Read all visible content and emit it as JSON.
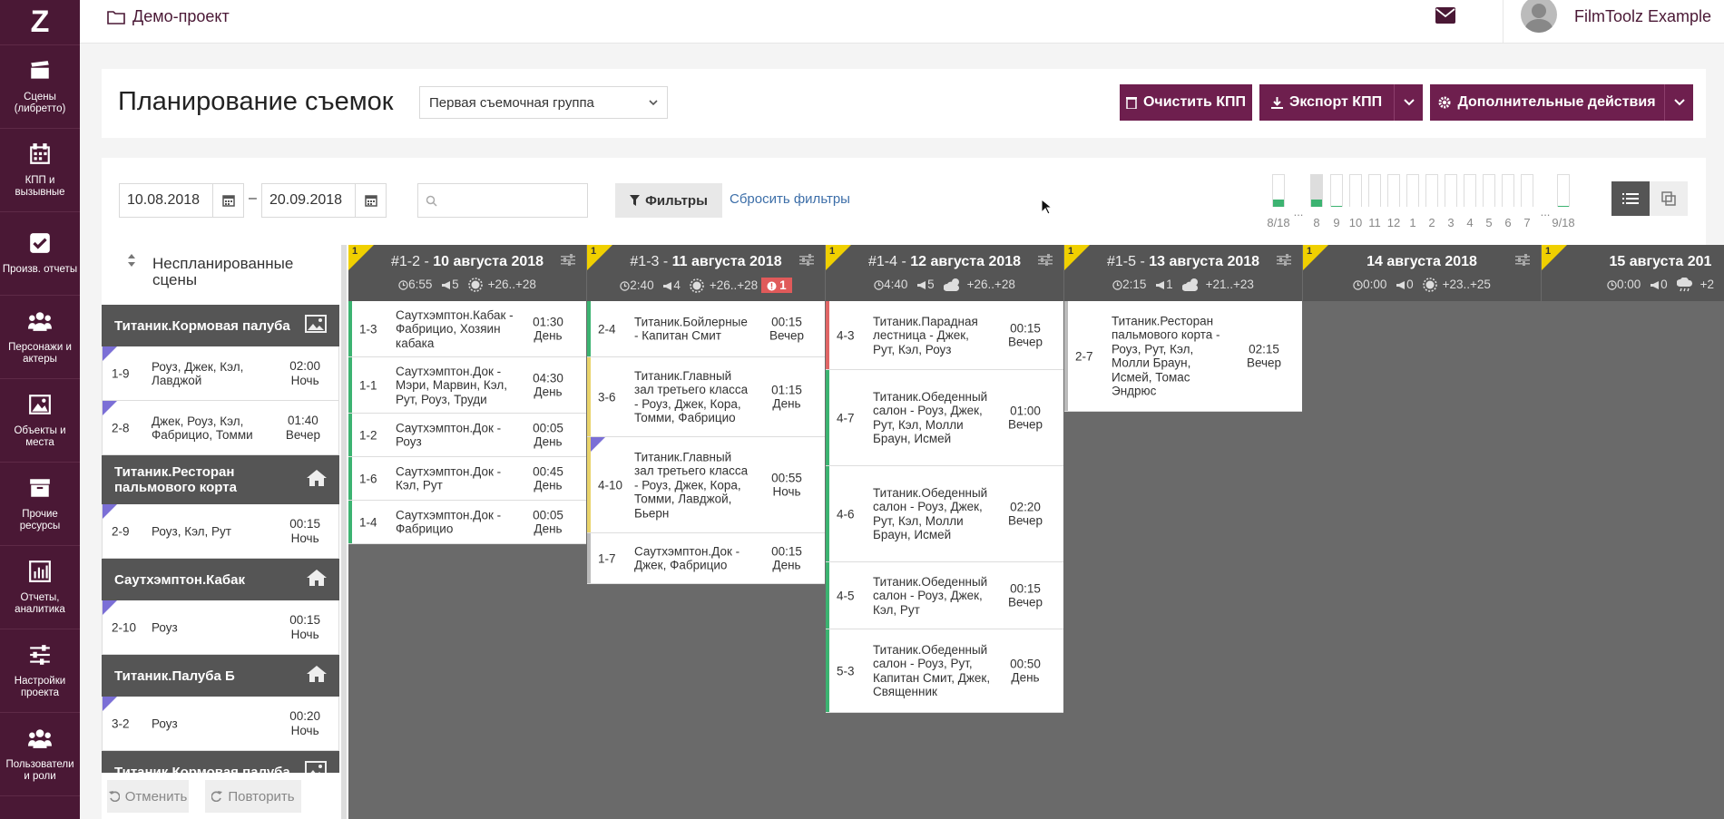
{
  "sidebar": {
    "logo": "Z",
    "items": [
      {
        "label": "Сцены (либретто)"
      },
      {
        "label": "КПП и вызывные"
      },
      {
        "label": "Произв. отчеты"
      },
      {
        "label": "Персонажи и актеры"
      },
      {
        "label": "Объекты и места"
      },
      {
        "label": "Прочие ресурсы"
      },
      {
        "label": "Отчеты, аналитика"
      },
      {
        "label": "Настройки проекта"
      },
      {
        "label": "Пользователи и роли"
      }
    ]
  },
  "topbar": {
    "project": "Демо-проект",
    "username": "FilmToolz Example"
  },
  "header": {
    "title": "Планирование съемок",
    "group": "Первая съемочная группа",
    "clear_btn": "Очистить КПП",
    "export_btn": "Экспорт КПП",
    "more_btn": "Дополнительные действия"
  },
  "toolbar": {
    "date_from": "10.08.2018",
    "date_sep": "–",
    "date_to": "20.09.2018",
    "search_placeholder": "",
    "filters_btn": "Фильтры",
    "reset_link": "Сбросить фильтры",
    "mini_labels": [
      "8/18",
      "...",
      "8",
      "9",
      "10",
      "11",
      "12",
      "1",
      "2",
      "3",
      "4",
      "5",
      "6",
      "7",
      "...",
      "9/18"
    ]
  },
  "unplanned": {
    "title": "Неспланированные сцены",
    "undo": "Отменить",
    "redo": "Повторить",
    "groups": [
      {
        "location": "Титаник.Кормовая палуба",
        "icon": "image-icon",
        "scenes": [
          {
            "num": "1-9",
            "desc": "Роуз, Джек, Кэл, Лавджой",
            "time": "02:00",
            "part": "Ночь"
          },
          {
            "num": "2-8",
            "desc": "Джек, Роуз, Кэл, Фабрицио, Томми",
            "time": "01:40",
            "part": "Вечер"
          }
        ]
      },
      {
        "location": "Титаник.Ресторан пальмового корта",
        "icon": "home-icon",
        "scenes": [
          {
            "num": "2-9",
            "desc": "Роуз, Кэл, Рут",
            "time": "00:15",
            "part": "Ночь"
          }
        ]
      },
      {
        "location": "Саутхэмптон.Кабак",
        "icon": "home-icon",
        "scenes": [
          {
            "num": "2-10",
            "desc": "Роуз",
            "time": "00:15",
            "part": "Ночь"
          }
        ]
      },
      {
        "location": "Титаник.Палуба Б",
        "icon": "home-icon",
        "scenes": [
          {
            "num": "3-2",
            "desc": "Роуз",
            "time": "00:20",
            "part": "Ночь"
          }
        ]
      },
      {
        "location": "Титаник.Кормовая палуба",
        "icon": "image-icon",
        "scenes": []
      }
    ]
  },
  "days": [
    {
      "flag": "1",
      "code": "#1-2 -",
      "date": "10 августа 2018",
      "dur": "6:55",
      "count": "5",
      "weather": "sun-icon",
      "temp": "+26..+28",
      "warn": "",
      "scenes": [
        {
          "num": "1-3",
          "desc": "Саутхэмптон.Кабак - Фабрицио, Хозяин кабака",
          "time": "01:30",
          "part": "День",
          "bar": "",
          "tri": false,
          "h": 62
        },
        {
          "num": "1-1",
          "desc": "Саутхэмптон.Док - Мэри, Марвин, Кэл, Рут, Роуз, Труди",
          "time": "04:30",
          "part": "День",
          "bar": "",
          "tri": false,
          "h": 62
        },
        {
          "num": "1-2",
          "desc": "Саутхэмптон.Док - Роуз",
          "time": "00:05",
          "part": "День",
          "bar": "",
          "tri": false,
          "h": 48
        },
        {
          "num": "1-6",
          "desc": "Саутхэмптон.Док - Кэл, Рут",
          "time": "00:45",
          "part": "День",
          "bar": "",
          "tri": false,
          "h": 48
        },
        {
          "num": "1-4",
          "desc": "Саутхэмптон.Док - Фабрицио",
          "time": "00:05",
          "part": "День",
          "bar": "",
          "tri": false,
          "h": 48
        }
      ]
    },
    {
      "flag": "1",
      "code": "#1-3 -",
      "date": "11 августа 2018",
      "dur": "2:40",
      "count": "4",
      "weather": "sun-icon",
      "temp": "+26..+28",
      "warn": "1",
      "scenes": [
        {
          "num": "2-4",
          "desc": "Титаник.Бойлерные - Капитан Смит",
          "time": "00:15",
          "part": "Вечер",
          "bar": "",
          "tri": false,
          "h": 62
        },
        {
          "num": "3-6",
          "desc": "Титаник.Главный зал третьего класса - Роуз, Джек, Кора, Томми, Фабрицио",
          "time": "01:15",
          "part": "День",
          "bar": "y",
          "tri": false,
          "h": 88
        },
        {
          "num": "4-10",
          "desc": "Титаник.Главный зал третьего класса - Роуз, Джек, Кора, Томми, Лавджой, Бьерн",
          "time": "00:55",
          "part": "Ночь",
          "bar": "y",
          "tri": true,
          "h": 106
        },
        {
          "num": "1-7",
          "desc": "Саутхэмптон.Док - Джек, Фабрицио",
          "time": "00:15",
          "part": "День",
          "bar": "g",
          "tri": false,
          "h": 56
        }
      ]
    },
    {
      "flag": "1",
      "code": "#1-4 -",
      "date": "12 августа 2018",
      "dur": "4:40",
      "count": "5",
      "weather": "cloud-icon",
      "temp": "+26..+28",
      "warn": "",
      "scenes": [
        {
          "num": "4-3",
          "desc": "Титаник.Парадная лестница - Джек, Рут, Кэл, Роуз",
          "time": "00:15",
          "part": "Вечер",
          "bar": "r",
          "tri": false,
          "h": 76
        },
        {
          "num": "4-7",
          "desc": "Титаник.Обеденный салон - Роуз, Джек, Рут, Кэл, Молли Браун, Исмей",
          "time": "01:00",
          "part": "Вечер",
          "bar": "",
          "tri": false,
          "h": 106
        },
        {
          "num": "4-6",
          "desc": "Титаник.Обеденный салон - Роуз, Джек, Рут, Кэл, Молли Браун, Исмей",
          "time": "02:20",
          "part": "Вечер",
          "bar": "",
          "tri": false,
          "h": 106
        },
        {
          "num": "4-5",
          "desc": "Титаник.Обеденный салон - Роуз, Джек, Кэл, Рут",
          "time": "00:15",
          "part": "Вечер",
          "bar": "",
          "tri": false,
          "h": 74
        },
        {
          "num": "5-3",
          "desc": "Титаник.Обеденный салон - Роуз, Рут, Капитан Смит, Джек, Священник",
          "time": "00:50",
          "part": "День",
          "bar": "",
          "tri": false,
          "h": 92
        }
      ]
    },
    {
      "flag": "1",
      "code": "#1-5 -",
      "date": "13 августа 2018",
      "dur": "2:15",
      "count": "1",
      "weather": "cloud-icon",
      "temp": "+21..+23",
      "warn": "",
      "scenes": [
        {
          "num": "2-7",
          "desc": "Титаник.Ресторан пальмового корта - Роуз, Рут, Кэл, Молли Браун, Исмей, Томас Эндрюс",
          "time": "02:15",
          "part": "Вечер",
          "bar": "g",
          "tri": false,
          "h": 122
        }
      ]
    },
    {
      "flag": "1",
      "code": "",
      "date": "14 августа 2018",
      "dur": "0:00",
      "count": "0",
      "weather": "sun-icon",
      "temp": "+23..+25",
      "warn": "",
      "scenes": []
    },
    {
      "flag": "1",
      "code": "",
      "date": "15 августа 201",
      "dur": "0:00",
      "count": "0",
      "weather": "rain-icon",
      "temp": "+2",
      "warn": "",
      "scenes": []
    }
  ]
}
